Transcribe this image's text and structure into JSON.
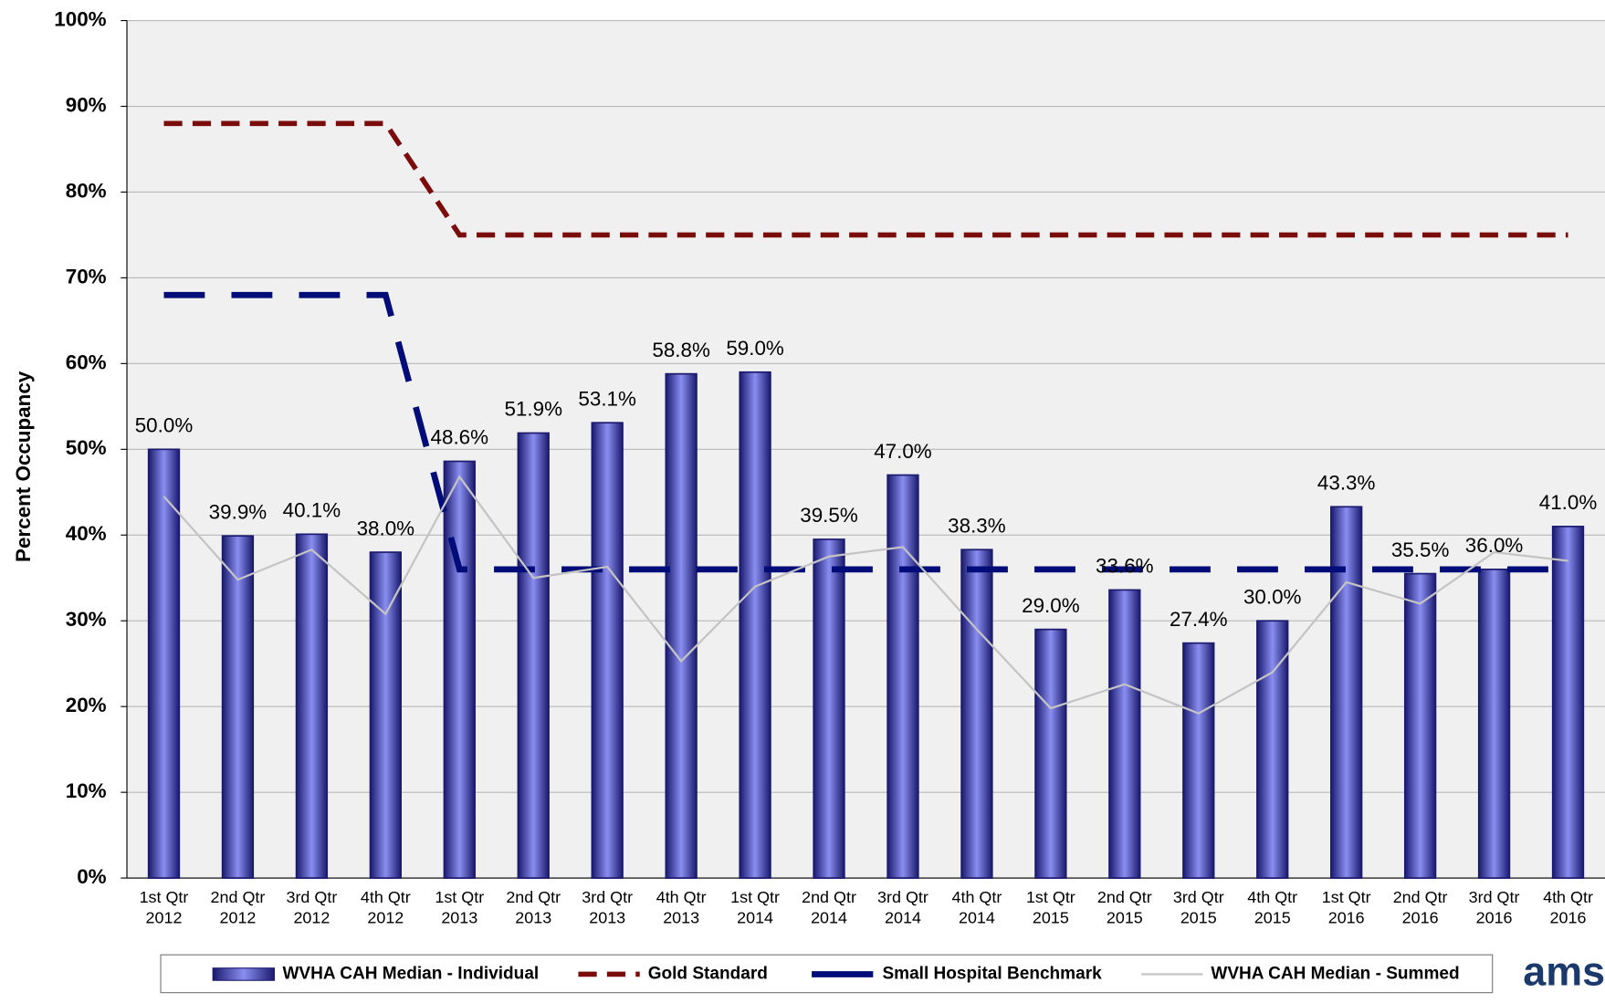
{
  "chart_data": {
    "type": "bar",
    "y_label": "Percent Occupancy",
    "categories": [
      "1st Qtr 2012",
      "2nd Qtr 2012",
      "3rd Qtr 2012",
      "4th Qtr 2012",
      "1st Qtr 2013",
      "2nd Qtr 2013",
      "3rd Qtr 2013",
      "4th Qtr 2013",
      "1st Qtr 2014",
      "2nd Qtr 2014",
      "3rd Qtr 2014",
      "4th Qtr 2014",
      "1st Qtr 2015",
      "2nd Qtr 2015",
      "3rd Qtr 2015",
      "4th Qtr 2015",
      "1st Qtr 2016",
      "2nd Qtr 2016",
      "3rd Qtr 2016",
      "4th Qtr 2016"
    ],
    "series": [
      {
        "name": "WVHA CAH Median - Individual",
        "type": "bar",
        "color": "#8a8ef0",
        "values": [
          50.0,
          39.9,
          40.1,
          38.0,
          48.6,
          51.9,
          53.1,
          58.8,
          59.0,
          39.5,
          47.0,
          38.3,
          29.0,
          33.6,
          27.4,
          30.0,
          43.3,
          35.5,
          36.0,
          41.0
        ],
        "value_labels": [
          "50.0%",
          "39.9%",
          "40.1%",
          "38.0%",
          "48.6%",
          "51.9%",
          "53.1%",
          "58.8%",
          "59.0%",
          "39.5%",
          "47.0%",
          "38.3%",
          "29.0%",
          "33.6%",
          "27.4%",
          "30.0%",
          "43.3%",
          "35.5%",
          "36.0%",
          "41.0%"
        ]
      },
      {
        "name": "Gold Standard",
        "type": "line",
        "line_style": "dashed",
        "color": "#7b0c0c",
        "values": [
          88,
          88,
          88,
          88,
          75,
          75,
          75,
          75,
          75,
          75,
          75,
          75,
          75,
          75,
          75,
          75,
          75,
          75,
          75,
          75
        ]
      },
      {
        "name": "Small  Hospital Benchmark",
        "type": "line",
        "line_style": "long-dashed",
        "color": "#000c78",
        "values": [
          68,
          68,
          68,
          68,
          36,
          36,
          36,
          36,
          36,
          36,
          36,
          36,
          36,
          36,
          36,
          36,
          36,
          36,
          36,
          36
        ]
      },
      {
        "name": "WVHA CAH Median - Summed",
        "type": "line",
        "line_style": "solid",
        "color": "#c4c4c4",
        "values": [
          44.5,
          34.8,
          38.3,
          30.8,
          46.8,
          35.0,
          36.3,
          25.3,
          34.0,
          37.5,
          38.6,
          29.0,
          19.8,
          22.6,
          19.2,
          24.0,
          34.5,
          32.0,
          38.0,
          37.0
        ]
      }
    ],
    "ylim": [
      0,
      100
    ],
    "yticks": [
      {
        "value": 0,
        "label": "0%"
      },
      {
        "value": 10,
        "label": "10%"
      },
      {
        "value": 20,
        "label": "20%"
      },
      {
        "value": 30,
        "label": "30%"
      },
      {
        "value": 40,
        "label": "40%"
      },
      {
        "value": 50,
        "label": "50%"
      },
      {
        "value": 60,
        "label": "60%"
      },
      {
        "value": 70,
        "label": "70%"
      },
      {
        "value": 80,
        "label": "80%"
      },
      {
        "value": 90,
        "label": "90%"
      },
      {
        "value": 100,
        "label": "100%"
      }
    ],
    "grid": true,
    "legend": "bottom",
    "logo": "ams"
  }
}
